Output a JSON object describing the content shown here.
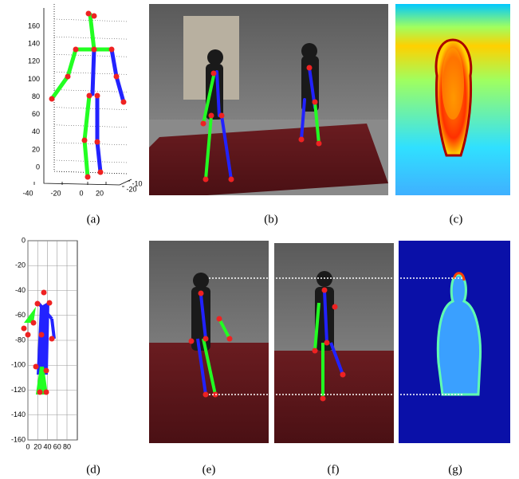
{
  "figure": {
    "panels": [
      {
        "caption": "(a)"
      },
      {
        "caption": "(b)"
      },
      {
        "caption": "(c)"
      },
      {
        "caption": "(d)"
      },
      {
        "caption": "(e)"
      },
      {
        "caption": "(f)"
      },
      {
        "caption": "(g)"
      }
    ]
  },
  "plot_a": {
    "yticks": [
      0,
      20,
      40,
      60,
      80,
      100,
      120,
      140,
      160
    ],
    "ylim": [
      0,
      160
    ],
    "xticks": [
      -40,
      -20,
      0,
      20
    ],
    "zticks": [
      -10,
      -20
    ]
  },
  "plot_d": {
    "yticks": [
      0,
      -20,
      -40,
      -60,
      -80,
      -100,
      -120,
      -140,
      -160
    ],
    "ylim": [
      -160,
      0
    ],
    "xticks": [
      0,
      20,
      40,
      60,
      80
    ],
    "xlim": [
      0,
      80
    ]
  }
}
